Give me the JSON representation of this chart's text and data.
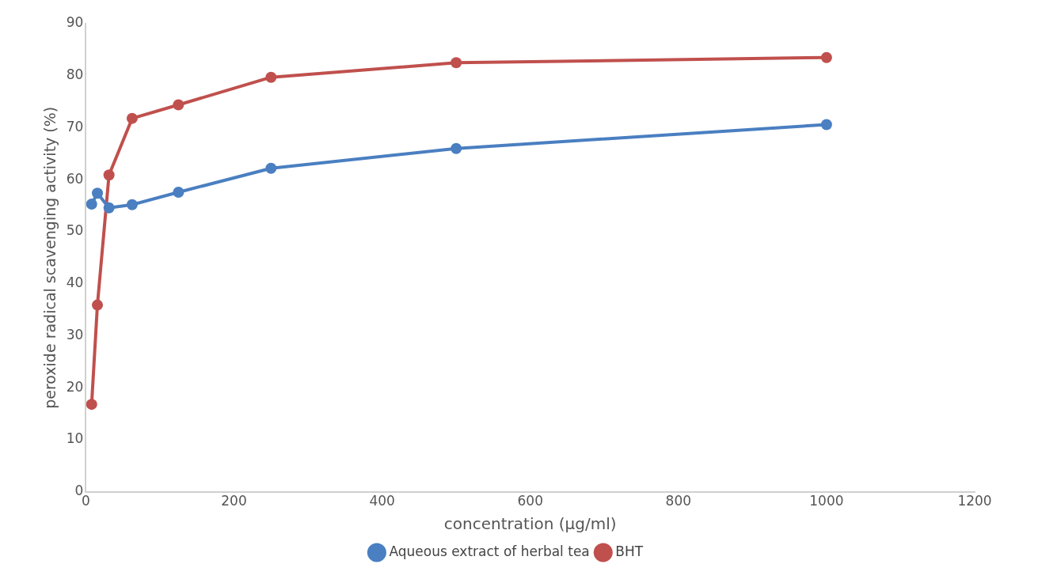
{
  "chart_data": {
    "type": "line",
    "xlabel": "concentration (µg/ml)",
    "ylabel": "peroxide radical scavenging activity (%)",
    "x": [
      7.8,
      15.6,
      31.25,
      62.5,
      125,
      250,
      500,
      1000
    ],
    "series": [
      {
        "name": "Aqueous extract of herbal tea",
        "color": "#4a7fc1",
        "values": [
          55.3,
          57.4,
          54.6,
          55.2,
          57.6,
          62.2,
          66.0,
          70.6
        ]
      },
      {
        "name": "BHT",
        "color": "#c0504d",
        "values": [
          16.8,
          35.9,
          60.9,
          71.8,
          74.4,
          79.7,
          82.5,
          83.5
        ]
      }
    ],
    "xlim": [
      0,
      1200
    ],
    "xticks": [
      0,
      200,
      400,
      600,
      800,
      1000,
      1200
    ],
    "ylim": [
      0,
      90
    ],
    "yticks": [
      0,
      10,
      20,
      30,
      40,
      50,
      60,
      70,
      80,
      90
    ],
    "grid": false,
    "legend": "bottom",
    "marker": "circle",
    "line_style": "solid"
  }
}
